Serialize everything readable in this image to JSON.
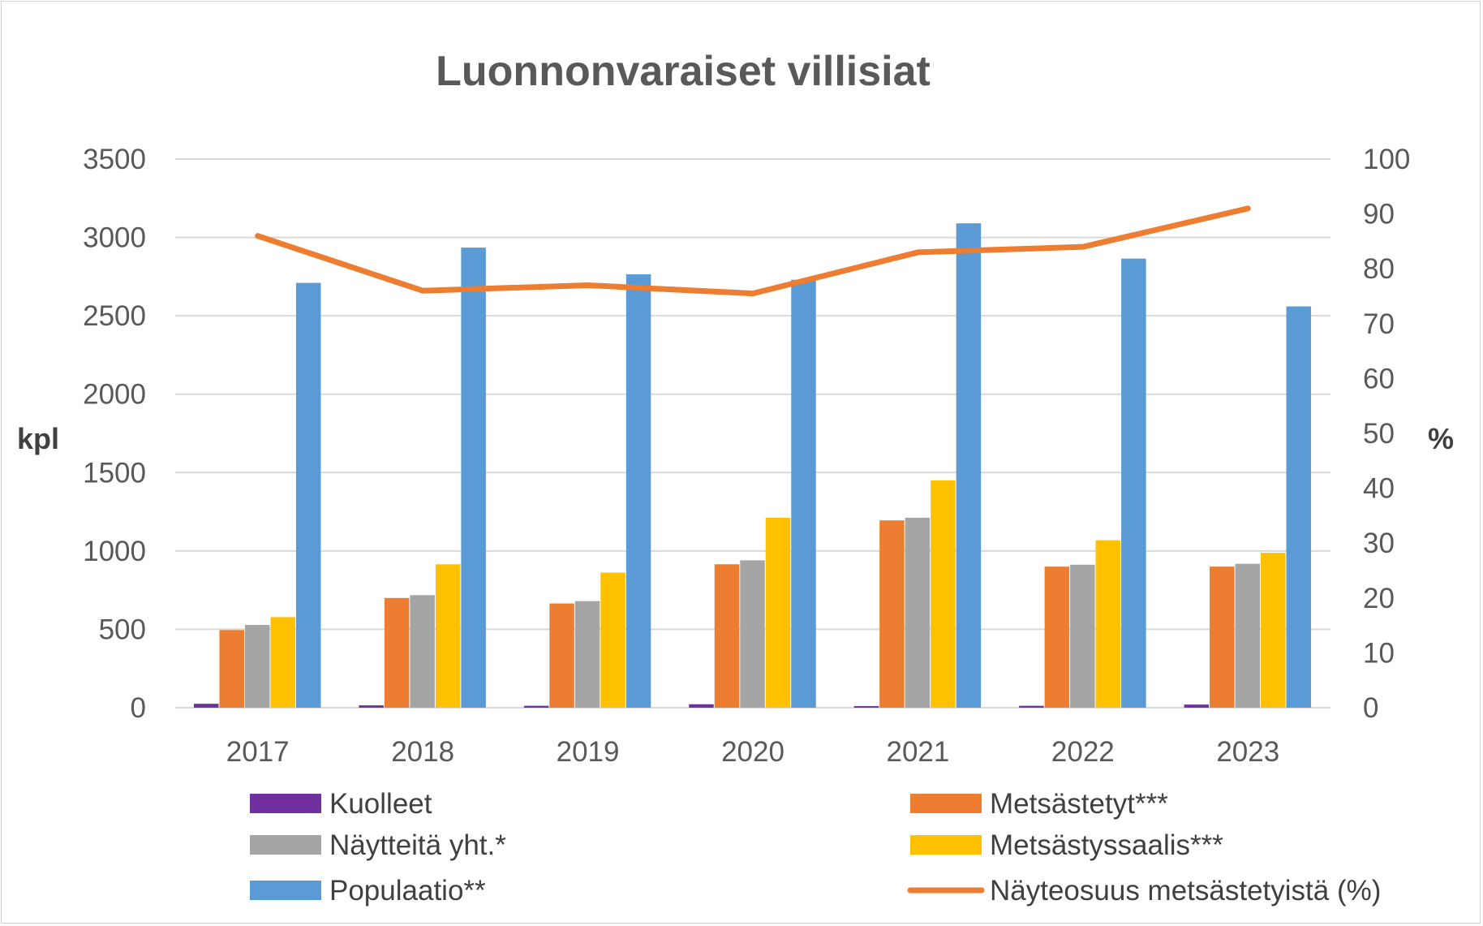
{
  "chart_data": {
    "type": "bar",
    "title": "Luonnonvaraiset villisiat",
    "ylabel": "kpl",
    "y2label": "%",
    "categories": [
      "2017",
      "2018",
      "2019",
      "2020",
      "2021",
      "2022",
      "2023"
    ],
    "ylim": [
      0,
      3500
    ],
    "yticks": [
      "0",
      "500",
      "1000",
      "1500",
      "2000",
      "2500",
      "3000",
      "3500"
    ],
    "y2lim": [
      0,
      100
    ],
    "y2ticks": [
      "0",
      "10",
      "20",
      "30",
      "40",
      "50",
      "60",
      "70",
      "80",
      "90",
      "100"
    ],
    "grid": true,
    "legend_position": "bottom",
    "series": [
      {
        "name": "Kuolleet",
        "type": "bar",
        "axis": "left",
        "color": "#7030A0",
        "values": [
          25,
          15,
          12,
          22,
          10,
          12,
          20
        ]
      },
      {
        "name": "Metsästetyt***",
        "type": "bar",
        "axis": "left",
        "color": "#ED7D31",
        "values": [
          495,
          700,
          665,
          915,
          1195,
          900,
          900
        ]
      },
      {
        "name": "Näytteitä yht.*",
        "type": "bar",
        "axis": "left",
        "color": "#A5A5A5",
        "values": [
          528,
          718,
          680,
          940,
          1212,
          912,
          918
        ]
      },
      {
        "name": "Metsästyssaalis***",
        "type": "bar",
        "axis": "left",
        "color": "#FFC000",
        "values": [
          578,
          915,
          862,
          1212,
          1450,
          1068,
          988
        ]
      },
      {
        "name": "Populaatio**",
        "type": "bar",
        "axis": "left",
        "color": "#5B9BD5",
        "values": [
          2710,
          2935,
          2765,
          2730,
          3090,
          2865,
          2560
        ]
      },
      {
        "name": "Näyteosuus metsästetyistä (%)",
        "type": "line",
        "axis": "right",
        "color": "#ED7D31",
        "values": [
          86,
          76,
          77,
          75.5,
          83,
          84,
          91
        ]
      }
    ]
  }
}
